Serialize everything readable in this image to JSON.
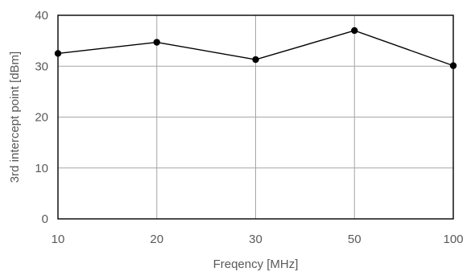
{
  "chart_data": {
    "type": "line",
    "title": "",
    "xlabel": "Freqency [MHz]",
    "ylabel": "3rd intercept point [dBm]",
    "categories": [
      "10",
      "20",
      "30",
      "50",
      "100"
    ],
    "series": [
      {
        "values": [
          32.5,
          34.7,
          31.3,
          37.0,
          30.1
        ],
        "color": "#000000",
        "marker": "circle"
      }
    ],
    "ylim": [
      0,
      40
    ],
    "yticks": [
      "0",
      "10",
      "20",
      "30",
      "40"
    ],
    "x_axis_type": "category",
    "grid": true,
    "gridColor": "#a6a6a6",
    "legend": "none"
  }
}
